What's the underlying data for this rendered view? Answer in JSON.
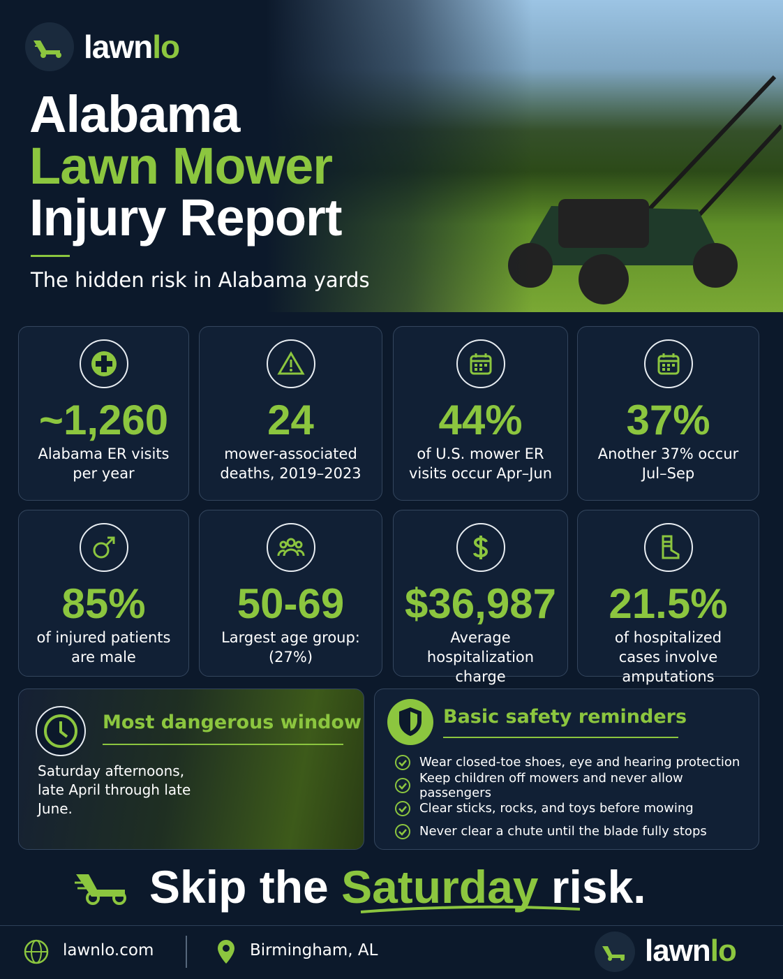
{
  "header": {
    "brand": [
      "lawn",
      "lo"
    ],
    "title": [
      "Alabama",
      "Lawn Mower",
      "Injury Report"
    ],
    "subtitle": "The hidden risk in Alabama yards"
  },
  "stats": [
    {
      "value": "~1,260",
      "label": "Alabama ER visits per year"
    },
    {
      "value": "24",
      "label": "mower-associated deaths, 2019–2023"
    },
    {
      "value": "44%",
      "label": "of U.S. mower ER visits occur Apr–Jun"
    },
    {
      "value": "37%",
      "label": "Another 37% occur Jul–Sep"
    },
    {
      "value": "85%",
      "label": "of injured patients are male"
    },
    {
      "value": "50-69",
      "label": "Largest age group: (27%)"
    },
    {
      "value": "$36,987",
      "label": "Average hospitalization charge"
    },
    {
      "value": "21.5%",
      "label": "of hospitalized cases involve amputations"
    }
  ],
  "window": {
    "title": "Most dangerous window",
    "text": "Saturday afternoons, late April through late June."
  },
  "safety": {
    "title": "Basic safety reminders",
    "items": [
      "Wear closed-toe shoes, eye and hearing protection",
      "Keep children off mowers and never allow passengers",
      "Clear sticks, rocks, and toys before mowing",
      "Never clear a chute until the blade fully stops"
    ]
  },
  "tagline": [
    "Skip the",
    "Saturday",
    "risk."
  ],
  "footer": {
    "website": "lawnlo.com",
    "location": "Birmingham, AL",
    "brand": [
      "lawn",
      "lo"
    ]
  }
}
